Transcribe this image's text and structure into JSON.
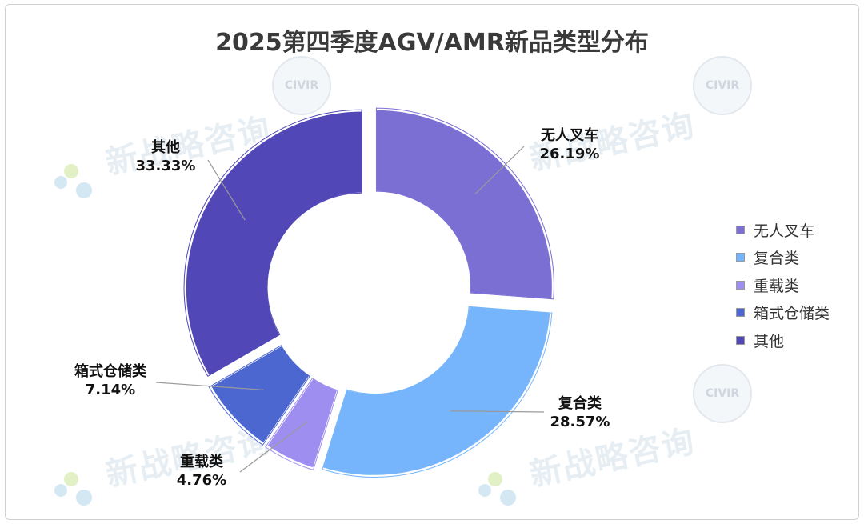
{
  "watermark": "新战略咨询",
  "chart_data": {
    "type": "donut",
    "title": "2025第四季度AGV/AMR新品类型分布",
    "categories": [
      "无人叉车",
      "复合类",
      "重载类",
      "箱式仓储类",
      "其他"
    ],
    "values": [
      26.19,
      28.57,
      4.76,
      7.14,
      33.33
    ],
    "value_labels": [
      "26.19%",
      "28.57%",
      "4.76%",
      "7.14%",
      "33.33%"
    ],
    "colors": [
      "#7b6fd4",
      "#76b5fb",
      "#9e8ef0",
      "#4c67d0",
      "#5147b7"
    ],
    "legend_position": "right",
    "exploded": true
  }
}
